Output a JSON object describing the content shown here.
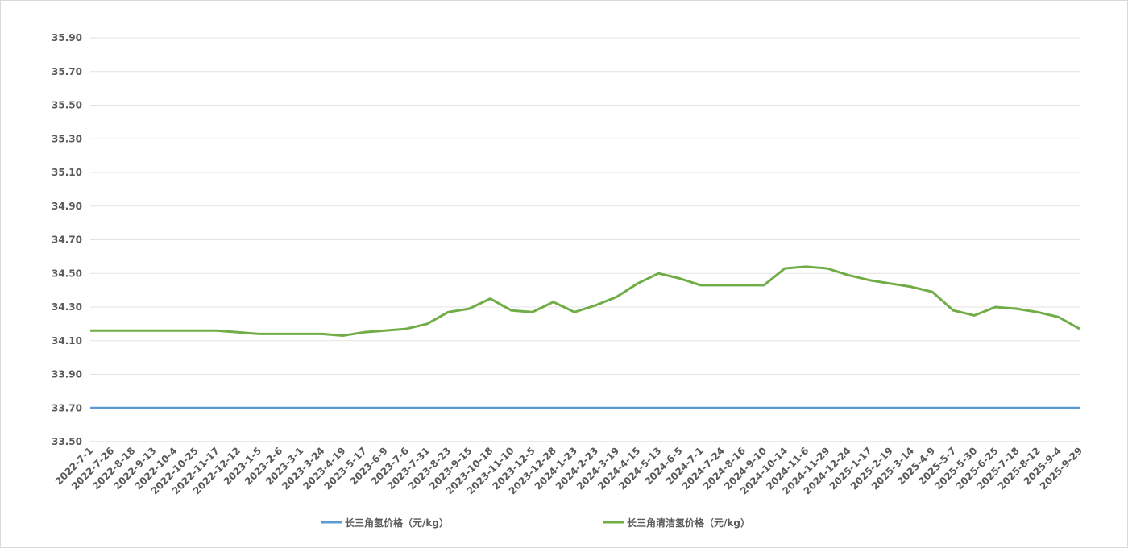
{
  "chart_data": {
    "type": "line",
    "categories": [
      "2022-7-1",
      "2022-7-26",
      "2022-8-18",
      "2022-9-13",
      "2022-10-4",
      "2022-10-25",
      "2022-11-17",
      "2022-12-12",
      "2023-1-5",
      "2023-2-6",
      "2023-3-1",
      "2023-3-24",
      "2023-4-19",
      "2023-5-17",
      "2023-6-9",
      "2023-7-6",
      "2023-7-31",
      "2023-8-23",
      "2023-9-15",
      "2023-10-18",
      "2023-11-10",
      "2023-12-5",
      "2023-12-28",
      "2024-1-23",
      "2024-2-23",
      "2024-3-19",
      "2024-4-15",
      "2024-5-13",
      "2024-6-5",
      "2024-7-1",
      "2024-7-24",
      "2024-8-16",
      "2024-9-10",
      "2024-10-14",
      "2024-11-6",
      "2024-11-29",
      "2024-12-24",
      "2025-1-17",
      "2025-2-19",
      "2025-3-14",
      "2025-4-9",
      "2025-5-7",
      "2025-5-30",
      "2025-6-25",
      "2025-7-18",
      "2025-8-12",
      "2025-9-4",
      "2025-9-29"
    ],
    "series": [
      {
        "name": "长三角氢价格（元/kg）",
        "color": "#5b9bd5",
        "values": [
          33.7,
          33.7,
          33.7,
          33.7,
          33.7,
          33.7,
          33.7,
          33.7,
          33.7,
          33.7,
          33.7,
          33.7,
          33.7,
          33.7,
          33.7,
          33.7,
          33.7,
          33.7,
          33.7,
          33.7,
          33.7,
          33.7,
          33.7,
          33.7,
          33.7,
          33.7,
          33.7,
          33.7,
          33.7,
          33.7,
          33.7,
          33.7,
          33.7,
          33.7,
          33.7,
          33.7,
          33.7,
          33.7,
          33.7,
          33.7,
          33.7,
          33.7,
          33.7,
          33.7,
          33.7,
          33.7,
          33.7,
          33.7
        ]
      },
      {
        "name": "长三角清洁氢价格（元/kg）",
        "color": "#70ad47",
        "values": [
          34.16,
          34.16,
          34.16,
          34.16,
          34.16,
          34.16,
          34.16,
          34.15,
          34.14,
          34.14,
          34.14,
          34.14,
          34.13,
          34.15,
          34.16,
          34.17,
          34.2,
          34.27,
          34.29,
          34.35,
          34.28,
          34.27,
          34.33,
          34.27,
          34.31,
          34.36,
          34.44,
          34.5,
          34.47,
          34.43,
          34.43,
          34.43,
          34.43,
          34.53,
          34.54,
          34.53,
          34.49,
          34.46,
          34.44,
          34.42,
          34.39,
          34.28,
          34.25,
          34.3,
          34.29,
          34.27,
          34.24,
          34.17
        ]
      }
    ],
    "ylim": [
      33.5,
      35.9
    ],
    "yticks": [
      {
        "value": 33.5,
        "label": "33.50"
      },
      {
        "value": 33.7,
        "label": "33.70"
      },
      {
        "value": 33.9,
        "label": "33.90"
      },
      {
        "value": 34.1,
        "label": "34.10"
      },
      {
        "value": 34.3,
        "label": "34.30"
      },
      {
        "value": 34.5,
        "label": "34.50"
      },
      {
        "value": 34.7,
        "label": "34.70"
      },
      {
        "value": 34.9,
        "label": "34.90"
      },
      {
        "value": 35.1,
        "label": "35.10"
      },
      {
        "value": 35.3,
        "label": "35.30"
      },
      {
        "value": 35.5,
        "label": "35.50"
      },
      {
        "value": 35.7,
        "label": "35.70"
      },
      {
        "value": 35.9,
        "label": "35.90"
      }
    ],
    "grid": true,
    "legend": "bottom"
  }
}
